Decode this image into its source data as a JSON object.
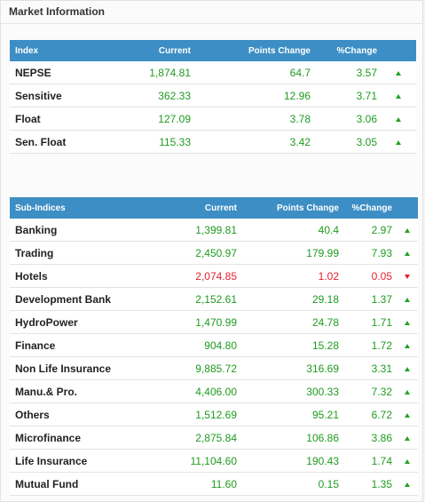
{
  "panel": {
    "title": "Market Information"
  },
  "colors": {
    "header_bg": "#3c8ec4",
    "up": "#1f9b1f",
    "down": "#e2202e"
  },
  "index_table": {
    "headers": {
      "name": "Index",
      "current": "Current",
      "points": "Points Change",
      "pct": "%Change"
    },
    "rows": [
      {
        "name": "NEPSE",
        "current": "1,874.81",
        "points": "64.7",
        "pct": "3.57",
        "direction": "up"
      },
      {
        "name": "Sensitive",
        "current": "362.33",
        "points": "12.96",
        "pct": "3.71",
        "direction": "up"
      },
      {
        "name": "Float",
        "current": "127.09",
        "points": "3.78",
        "pct": "3.06",
        "direction": "up"
      },
      {
        "name": "Sen. Float",
        "current": "115.33",
        "points": "3.42",
        "pct": "3.05",
        "direction": "up"
      }
    ]
  },
  "subindex_table": {
    "headers": {
      "name": "Sub-Indices",
      "current": "Current",
      "points": "Points Change",
      "pct": "%Change"
    },
    "rows": [
      {
        "name": "Banking",
        "current": "1,399.81",
        "points": "40.4",
        "pct": "2.97",
        "direction": "up"
      },
      {
        "name": "Trading",
        "current": "2,450.97",
        "points": "179.99",
        "pct": "7.93",
        "direction": "up"
      },
      {
        "name": "Hotels",
        "current": "2,074.85",
        "points": "1.02",
        "pct": "0.05",
        "direction": "down"
      },
      {
        "name": "Development Bank",
        "current": "2,152.61",
        "points": "29.18",
        "pct": "1.37",
        "direction": "up"
      },
      {
        "name": "HydroPower",
        "current": "1,470.99",
        "points": "24.78",
        "pct": "1.71",
        "direction": "up"
      },
      {
        "name": "Finance",
        "current": "904.80",
        "points": "15.28",
        "pct": "1.72",
        "direction": "up"
      },
      {
        "name": "Non Life Insurance",
        "current": "9,885.72",
        "points": "316.69",
        "pct": "3.31",
        "direction": "up"
      },
      {
        "name": "Manu.& Pro.",
        "current": "4,406.00",
        "points": "300.33",
        "pct": "7.32",
        "direction": "up"
      },
      {
        "name": "Others",
        "current": "1,512.69",
        "points": "95.21",
        "pct": "6.72",
        "direction": "up"
      },
      {
        "name": "Microfinance",
        "current": "2,875.84",
        "points": "106.86",
        "pct": "3.86",
        "direction": "up"
      },
      {
        "name": "Life Insurance",
        "current": "11,104.60",
        "points": "190.43",
        "pct": "1.74",
        "direction": "up"
      },
      {
        "name": "Mutual Fund",
        "current": "11.60",
        "points": "0.15",
        "pct": "1.35",
        "direction": "up"
      }
    ]
  }
}
